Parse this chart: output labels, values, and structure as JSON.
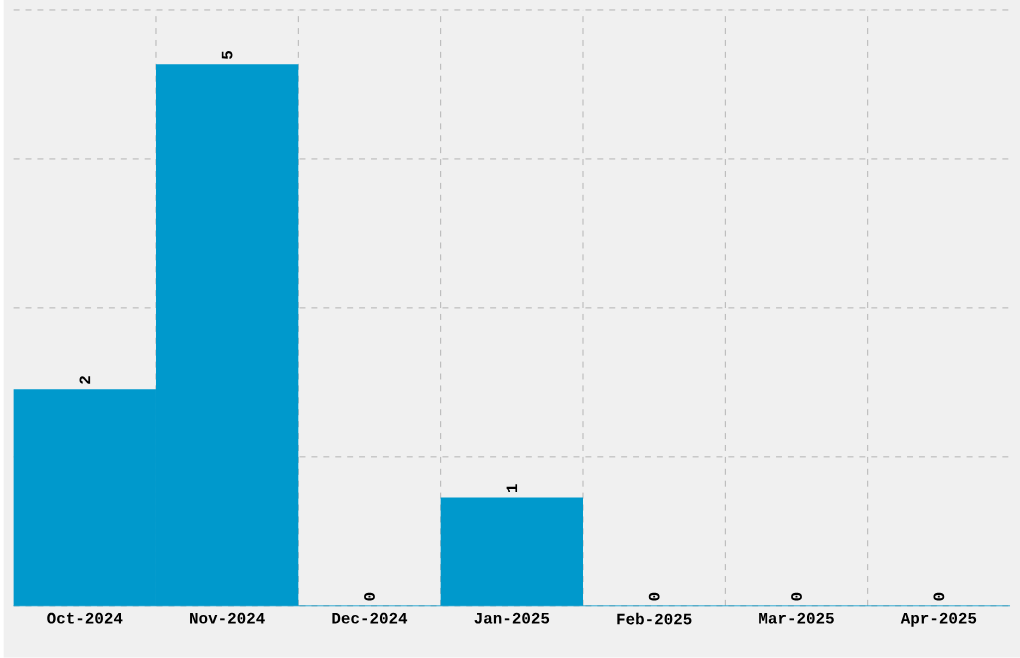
{
  "chart_data": {
    "type": "bar",
    "categories": [
      "Oct-2024",
      "Nov-2024",
      "Dec-2024",
      "Jan-2025",
      "Feb-2025",
      "Mar-2025",
      "Apr-2025"
    ],
    "values": [
      2,
      5,
      0,
      1,
      0,
      0,
      0
    ],
    "color": "#0099cc",
    "ylim": [
      0,
      5.5
    ],
    "yticks": [
      {
        "value": 0,
        "label": null
      },
      {
        "value": 1.375,
        "label": null
      },
      {
        "value": 2.75,
        "label": null
      },
      {
        "value": 4.125,
        "label": null
      },
      {
        "value": 5.5,
        "label": null
      }
    ],
    "grid": true,
    "data_labels": true,
    "tick_labels": "x"
  }
}
